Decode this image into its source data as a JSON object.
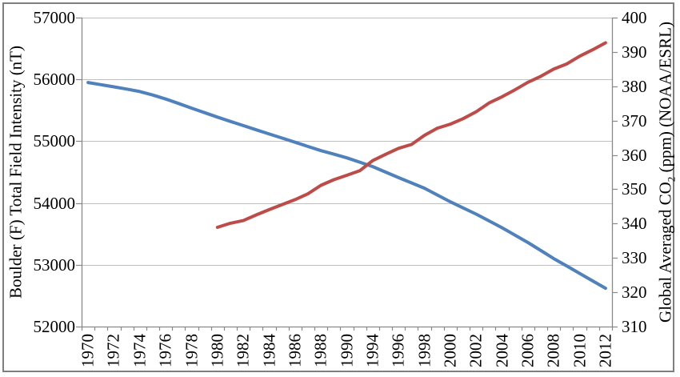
{
  "chart_data": {
    "type": "line",
    "title": "",
    "xlabel": "",
    "ylabel_left": "Boulder (F) Total Field Intensity (nT)",
    "ylabel_right_parts": [
      "Global Averaged CO",
      "2",
      " (ppm) (NOAA/ESRL)"
    ],
    "categories": [
      1970,
      1971,
      1972,
      1973,
      1974,
      1975,
      1976,
      1977,
      1978,
      1979,
      1980,
      1981,
      1982,
      1983,
      1984,
      1985,
      1986,
      1987,
      1988,
      1989,
      1990,
      1991,
      1994,
      1995,
      1996,
      1997,
      1998,
      1999,
      2000,
      2001,
      2002,
      2003,
      2004,
      2005,
      2006,
      2007,
      2008,
      2009,
      2010,
      2011,
      2012
    ],
    "x_tick_labels": [
      "1970",
      "1972",
      "1974",
      "1976",
      "1978",
      "1980",
      "1982",
      "1984",
      "1986",
      "1988",
      "1990",
      "1994",
      "1996",
      "1998",
      "2000",
      "2002",
      "2004",
      "2006",
      "2008",
      "2010",
      "2012"
    ],
    "x_tick_label_category_step": 2,
    "series": [
      {
        "name": "Boulder (F) Total Field Intensity (nT)",
        "axis": "left",
        "color": "#4F81BD",
        "values": [
          55950,
          55915,
          55880,
          55843,
          55803,
          55748,
          55683,
          55610,
          55535,
          55462,
          55390,
          55320,
          55252,
          55184,
          55117,
          55050,
          54983,
          54915,
          54847,
          54790,
          54730,
          54660,
          54590,
          54500,
          54410,
          54325,
          54240,
          54130,
          54020,
          53920,
          53820,
          53710,
          53600,
          53480,
          53360,
          53230,
          53100,
          52980,
          52860,
          52740,
          52620
        ]
      },
      {
        "name": "Global Averaged CO2 (ppm) (NOAA/ESRL)",
        "axis": "right",
        "color": "#BE4B48",
        "values": [
          null,
          null,
          null,
          null,
          null,
          null,
          null,
          null,
          null,
          null,
          338.91,
          340.11,
          340.86,
          342.53,
          344.07,
          345.54,
          346.97,
          348.68,
          351.16,
          352.79,
          354.06,
          355.39,
          358.33,
          360.18,
          361.93,
          363.04,
          365.7,
          367.8,
          368.97,
          370.57,
          372.59,
          375.14,
          376.95,
          378.98,
          381.15,
          382.9,
          385.02,
          386.5,
          388.76,
          390.63,
          392.65
        ]
      }
    ],
    "ylim_left": [
      52000,
      57000
    ],
    "ylim_right": [
      310,
      400
    ],
    "yticks_left": [
      52000,
      53000,
      54000,
      55000,
      56000,
      57000
    ],
    "yticks_right": [
      310,
      320,
      330,
      340,
      350,
      360,
      370,
      380,
      390,
      400
    ],
    "grid": "horizontal gridlines at left-axis ticks",
    "legend": "none"
  },
  "colors": {
    "gridline": "#BFBFBF",
    "axis_line": "#898989",
    "tick_mark": "#898989",
    "text": "#000000",
    "frame_border": "#7F7F7F",
    "background": "#FFFFFF"
  }
}
